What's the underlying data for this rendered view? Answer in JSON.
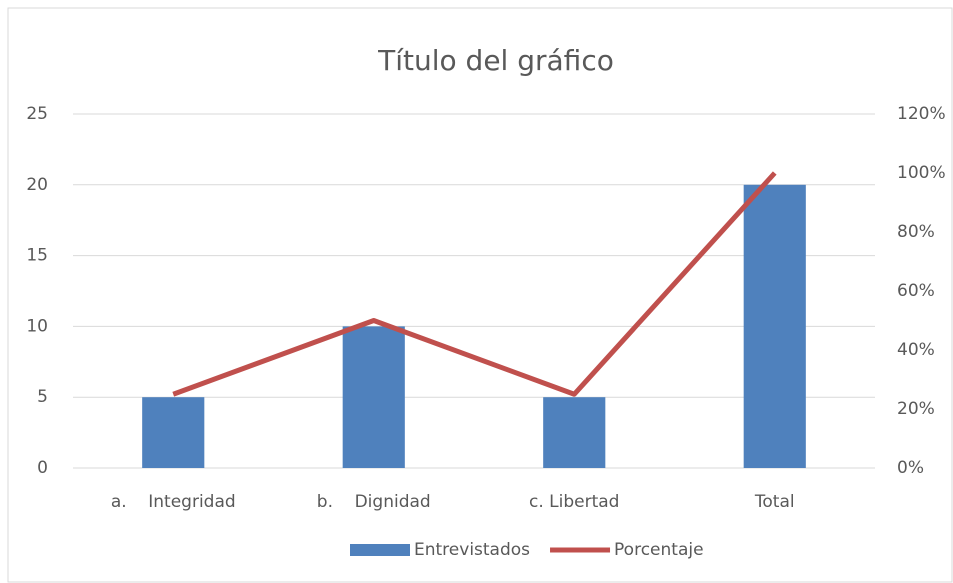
{
  "chart_data": {
    "type": "combo",
    "title": "Título del gráfico",
    "categories": [
      "a.    Integridad",
      "b.    Dignidad",
      "c. Libertad",
      "Total"
    ],
    "series": [
      {
        "name": "Entrevistados",
        "type": "bar",
        "color": "#4f81bd",
        "values": [
          5,
          10,
          5,
          20
        ]
      },
      {
        "name": "Porcentaje",
        "type": "line",
        "axis": "y2",
        "color": "#c0504d",
        "values": [
          25,
          50,
          25,
          100
        ]
      }
    ],
    "ylim": [
      0,
      25
    ],
    "yticks": [
      0,
      5,
      10,
      15,
      20,
      25
    ],
    "y2lim": [
      0,
      120
    ],
    "y2ticks": [
      {
        "value": 0,
        "label": "0%"
      },
      {
        "value": 20,
        "label": "20%"
      },
      {
        "value": 40,
        "label": "40%"
      },
      {
        "value": 60,
        "label": "60%"
      },
      {
        "value": 80,
        "label": "80%"
      },
      {
        "value": 100,
        "label": "100%"
      },
      {
        "value": 120,
        "label": "120%"
      }
    ],
    "grid": true,
    "legend": "bottom"
  }
}
